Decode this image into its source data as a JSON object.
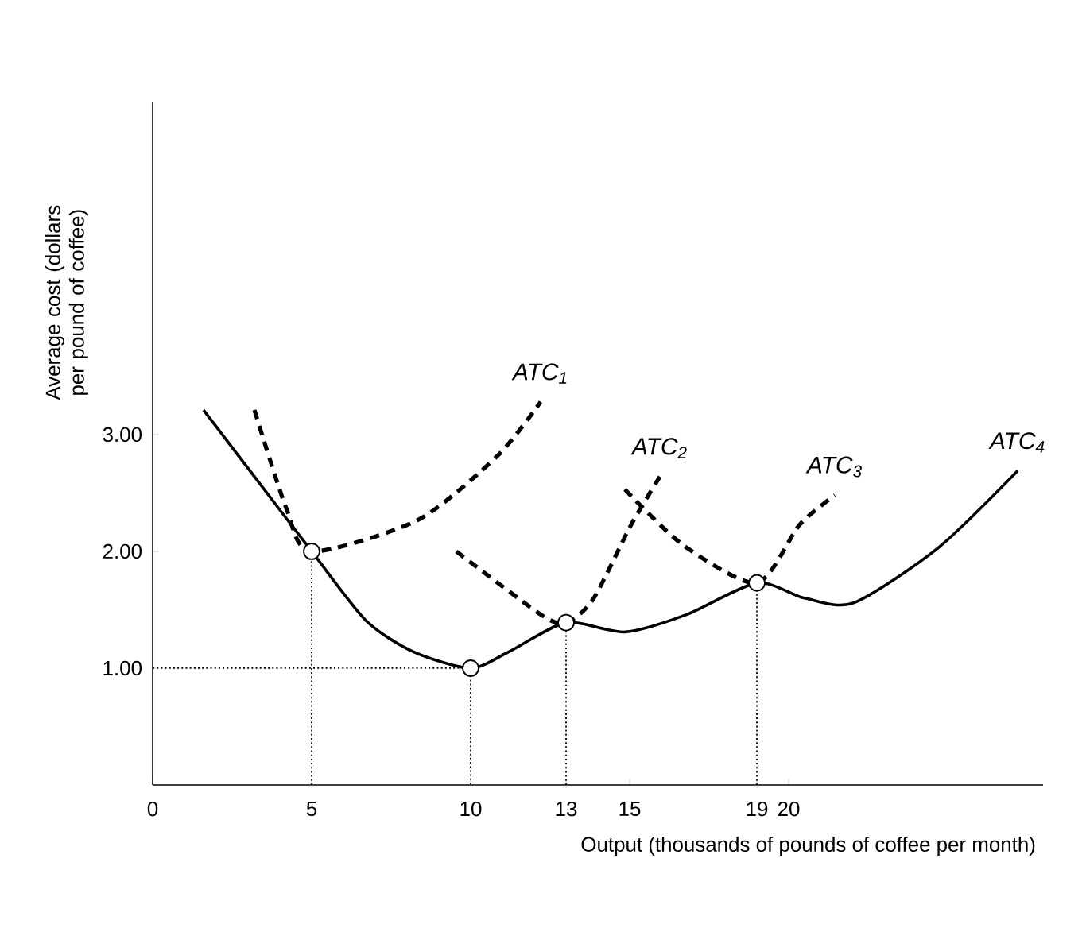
{
  "chart_data": {
    "type": "line",
    "xlabel": "Output (thousands of pounds of coffee per month)",
    "ylabel": "Average cost (dollars per pound of coffee)",
    "xlim": [
      0,
      28
    ],
    "ylim": [
      0,
      5.85
    ],
    "xticks": [
      0,
      5,
      10,
      13,
      15,
      19,
      20
    ],
    "yticks": [
      {
        "value": 1,
        "label": "1.00"
      },
      {
        "value": 2,
        "label": "2.00"
      },
      {
        "value": 3,
        "label": "3.00"
      }
    ],
    "series": [
      {
        "color": "#000000",
        "line_style": "dotted",
        "x": [
          5,
          5
        ],
        "values": [
          0,
          2
        ]
      },
      {
        "color": "#000000",
        "line_style": "dotted",
        "x": [
          0,
          10,
          10
        ],
        "values": [
          1,
          1,
          0
        ]
      },
      {
        "color": "#000000",
        "line_style": "dotted",
        "x": [
          13,
          13
        ],
        "values": [
          0,
          1.39
        ]
      },
      {
        "color": "#000000",
        "line_style": "dotted",
        "x": [
          19,
          19
        ],
        "values": [
          0,
          1.73
        ]
      },
      {
        "name": "ATC$_{1}$",
        "color": "#000000",
        "line_style": "dashed",
        "x": [
          3.2,
          4.2,
          5,
          8.35,
          10.85,
          12.2
        ],
        "values": [
          3.21,
          2.37,
          2,
          2.27,
          2.82,
          3.28
        ]
      },
      {
        "name": "ATC$_{2}$",
        "color": "#000000",
        "line_style": "dashed",
        "x": [
          9.55,
          12.2,
          13,
          13.85,
          15.05,
          15.95
        ],
        "values": [
          2.0,
          1.46,
          1.39,
          1.59,
          2.23,
          2.64
        ]
      },
      {
        "name": "ATC$_{3}$",
        "color": "#000000",
        "line_style": "dashed",
        "x": [
          14.85,
          16.7,
          19,
          20.35,
          21.45
        ],
        "values": [
          2.53,
          2.05,
          1.73,
          2.23,
          2.48
        ]
      },
      {
        "name": "ATC$_{4}$",
        "color": "#000000",
        "line_style": "solid",
        "x": [
          1.6,
          3.2,
          5,
          6.7,
          8.2,
          10,
          11.2,
          13,
          14.85,
          16.8,
          19,
          20.5,
          22.05,
          24.7,
          27.2
        ],
        "values": [
          3.21,
          2.64,
          2,
          1.41,
          1.14,
          1.0,
          1.14,
          1.39,
          1.31,
          1.46,
          1.73,
          1.6,
          1.56,
          2.03,
          2.69
        ]
      },
      {
        "type": "scatter",
        "marker": "circle",
        "color": "#000000",
        "x": [
          5,
          10,
          13,
          19
        ],
        "values": [
          2,
          1,
          1.39,
          1.73
        ]
      }
    ]
  }
}
